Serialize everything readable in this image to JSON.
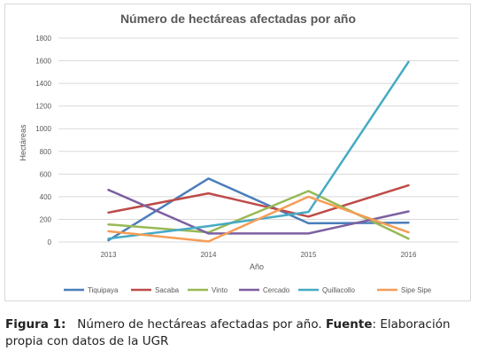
{
  "chart_data": {
    "type": "line",
    "title": "Número de hectáreas afectadas por año",
    "xlabel": "Año",
    "ylabel": "Hectáreas",
    "x": [
      "2013",
      "2014",
      "2015",
      "2016"
    ],
    "ylim": [
      0,
      1800
    ],
    "yticks": [
      0,
      200,
      400,
      600,
      800,
      1000,
      1200,
      1400,
      1600,
      1800
    ],
    "grid": true,
    "legend_position": "bottom",
    "series": [
      {
        "name": "Tiquipaya",
        "color": "#4a7ebb",
        "values": [
          15,
          560,
          165,
          170
        ]
      },
      {
        "name": "Sacaba",
        "color": "#be4b48",
        "values": [
          260,
          430,
          225,
          500
        ]
      },
      {
        "name": "Vinto",
        "color": "#98b954",
        "values": [
          155,
          85,
          450,
          30
        ]
      },
      {
        "name": "Cercado",
        "color": "#7d60a0",
        "values": [
          460,
          75,
          75,
          270
        ]
      },
      {
        "name": "Quillacollo",
        "color": "#46aac5",
        "values": [
          30,
          140,
          265,
          1590
        ]
      },
      {
        "name": "Sipe Sipe",
        "color": "#f59d56",
        "values": [
          95,
          5,
          400,
          85
        ]
      }
    ]
  },
  "caption": {
    "label": "Figura 1:",
    "text": "Número de hectáreas afectadas por año.",
    "source_label": "Fuente",
    "source_text": ": Elaboración propia con datos de la UGR"
  }
}
